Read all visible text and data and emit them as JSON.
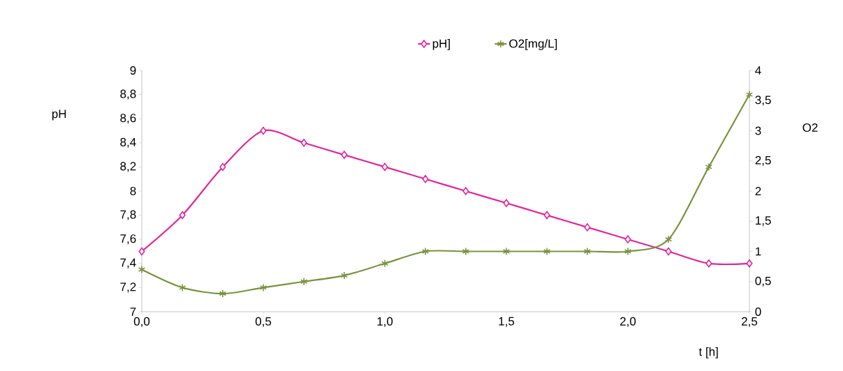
{
  "chart_data": {
    "type": "line",
    "x": [
      0,
      0.167,
      0.333,
      0.5,
      0.667,
      0.833,
      1.0,
      1.167,
      1.333,
      1.5,
      1.667,
      1.833,
      2.0,
      2.167,
      2.333,
      2.5
    ],
    "series": [
      {
        "name": "pH]",
        "color": "#e2249c",
        "marker": "diamond",
        "values": [
          7.5,
          7.8,
          8.2,
          8.5,
          8.4,
          8.3,
          8.2,
          8.1,
          8.0,
          7.9,
          7.8,
          7.7,
          7.6,
          7.5,
          7.4,
          7.4
        ]
      },
      {
        "name": "O2[mg/L]",
        "color": "#77933c",
        "marker": "cross",
        "axis": "y2",
        "values": [
          0.7,
          0.4,
          0.3,
          0.4,
          0.5,
          0.6,
          0.8,
          1.0,
          1.0,
          1.0,
          1.0,
          1.0,
          1.0,
          1.2,
          2.4,
          3.6
        ]
      }
    ],
    "xlabel": "t [h]",
    "ylabel": "pH",
    "y2label": "O2",
    "xlim": [
      0,
      2.5
    ],
    "xticks": [
      {
        "value": 0,
        "label": "0,0"
      },
      {
        "value": 0.5,
        "label": "0,5"
      },
      {
        "value": 1.0,
        "label": "1,0"
      },
      {
        "value": 1.5,
        "label": "1,5"
      },
      {
        "value": 2.0,
        "label": "2,0"
      },
      {
        "value": 2.5,
        "label": "2,5"
      }
    ],
    "ylim": [
      7,
      9
    ],
    "yticks": [
      7,
      {
        "value": 7.2,
        "label": "7,2"
      },
      {
        "value": 7.4,
        "label": "7,4"
      },
      {
        "value": 7.6,
        "label": "7,6"
      },
      {
        "value": 7.8,
        "label": "7,8"
      },
      8,
      {
        "value": 8.2,
        "label": "8,2"
      },
      {
        "value": 8.4,
        "label": "8,4"
      },
      {
        "value": 8.6,
        "label": "8,6"
      },
      {
        "value": 8.8,
        "label": "8,8"
      },
      9
    ],
    "y2lim": [
      0,
      4
    ],
    "y2ticks": [
      0,
      {
        "value": 0.5,
        "label": "0,5"
      },
      1,
      {
        "value": 1.5,
        "label": "1,5"
      },
      2,
      {
        "value": 2.5,
        "label": "2,5"
      },
      3,
      {
        "value": 3.5,
        "label": "3,5"
      },
      4
    ],
    "legend": "top"
  }
}
